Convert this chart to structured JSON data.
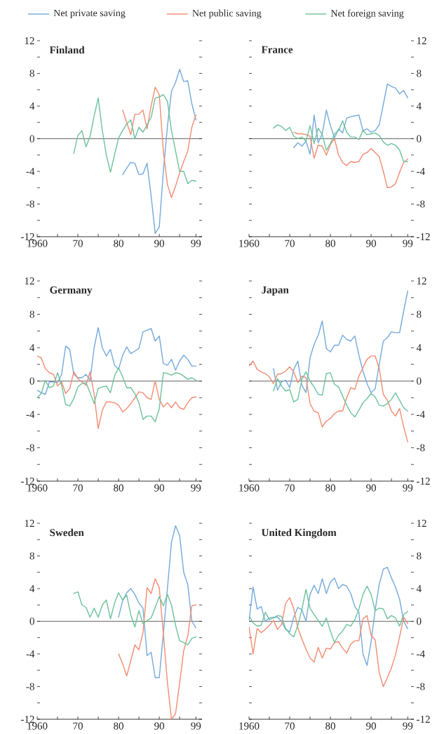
{
  "chart_data": [
    {
      "type": "line",
      "title": "Finland",
      "legend": "top",
      "xlim": [
        1960,
        2000.5
      ],
      "ylim": [
        -12,
        12
      ],
      "xticks": [
        1960,
        {
          "value": 1965,
          "label": null
        },
        {
          "value": 1970,
          "label": "70"
        },
        {
          "value": 1975,
          "label": null
        },
        {
          "value": 1980,
          "label": "80"
        },
        {
          "value": 1985,
          "label": null
        },
        {
          "value": 1990,
          "label": "90"
        },
        {
          "value": 1995,
          "label": null
        },
        {
          "value": 1999,
          "label": "99"
        }
      ],
      "yticks": [
        -12,
        {
          "value": -10,
          "label": null
        },
        -8,
        {
          "value": -6,
          "label": null
        },
        -4,
        {
          "value": -2,
          "label": null
        },
        0,
        {
          "value": 2,
          "label": null
        },
        4,
        {
          "value": 6,
          "label": null
        },
        8,
        {
          "value": 10,
          "label": null
        },
        12
      ],
      "ref_lines": [
        {
          "axis": "y",
          "value": 0,
          "color": "#000000"
        }
      ],
      "series": [
        {
          "name": "Net private saving",
          "color": "#74a9dc",
          "x": [
            1981,
            1982,
            1983,
            1984,
            1985,
            1986,
            1987,
            1988,
            1989,
            1990,
            1991,
            1992,
            1993,
            1994,
            1995,
            1996,
            1997,
            1998,
            1999
          ],
          "values": [
            -4.4,
            -3.6,
            -2.9,
            -3.0,
            -4.4,
            -4.3,
            -3.0,
            -7.0,
            -11.6,
            -10.8,
            -4.0,
            1.5,
            5.8,
            6.9,
            8.5,
            7.0,
            7.1,
            4.3,
            2.3
          ]
        },
        {
          "name": "Net public saving",
          "color": "#f28b72",
          "x": [
            1981,
            1982,
            1983,
            1984,
            1985,
            1986,
            1987,
            1988,
            1989,
            1990,
            1991,
            1992,
            1993,
            1994,
            1995,
            1996,
            1997,
            1998,
            1999
          ],
          "values": [
            3.5,
            2.0,
            0.5,
            3.0,
            3.0,
            3.5,
            1.2,
            4.0,
            6.3,
            5.4,
            -1.5,
            -5.6,
            -7.2,
            -5.8,
            -4.2,
            -2.8,
            -1.5,
            1.4,
            2.9
          ]
        },
        {
          "name": "Net foreign saving",
          "color": "#6cc29a",
          "x": [
            1969,
            1970,
            1971,
            1972,
            1973,
            1974,
            1975,
            1976,
            1977,
            1978,
            1979,
            1980,
            1981,
            1982,
            1983,
            1984,
            1985,
            1986,
            1987,
            1988,
            1989,
            1990,
            1991,
            1992,
            1993,
            1994,
            1995,
            1996,
            1997,
            1998,
            1999
          ],
          "values": [
            -1.8,
            0.4,
            1.0,
            -1.0,
            0.3,
            2.8,
            5.0,
            1.0,
            -2.0,
            -4.1,
            -2.0,
            0.1,
            1.0,
            1.8,
            2.3,
            0.0,
            1.4,
            0.8,
            1.7,
            2.6,
            5.0,
            5.1,
            5.4,
            4.6,
            1.0,
            -1.5,
            -4.0,
            -4.0,
            -5.5,
            -5.1,
            -5.2
          ]
        }
      ]
    },
    {
      "type": "line",
      "title": "France",
      "xlim": [
        1960,
        2000.5
      ],
      "ylim": [
        -12,
        12
      ],
      "xticks": [
        1960,
        {
          "value": 1965,
          "label": null
        },
        {
          "value": 1970,
          "label": "70"
        },
        {
          "value": 1975,
          "label": null
        },
        {
          "value": 1980,
          "label": "80"
        },
        {
          "value": 1985,
          "label": null
        },
        {
          "value": 1990,
          "label": "90"
        },
        {
          "value": 1995,
          "label": null
        },
        {
          "value": 1999,
          "label": "99"
        }
      ],
      "yticks": [
        -12,
        {
          "value": -10,
          "label": null
        },
        -8,
        {
          "value": -6,
          "label": null
        },
        -4,
        {
          "value": -2,
          "label": null
        },
        0,
        {
          "value": 2,
          "label": null
        },
        4,
        {
          "value": 6,
          "label": null
        },
        8,
        {
          "value": 10,
          "label": null
        },
        12
      ],
      "ref_lines": [
        {
          "axis": "y",
          "value": 0,
          "color": "#000000"
        }
      ],
      "series": [
        {
          "color": "#74a9dc",
          "x": [
            1971,
            1972,
            1973,
            1974,
            1975,
            1976,
            1977,
            1978,
            1979,
            1980,
            1981,
            1982,
            1983,
            1984,
            1985,
            1986,
            1987,
            1988,
            1989,
            1990,
            1991,
            1992,
            1993,
            1994,
            1995,
            1996,
            1997,
            1998,
            1999
          ],
          "values": [
            -1.1,
            -0.5,
            -0.9,
            -0.3,
            -1.9,
            2.9,
            -0.5,
            0.6,
            3.5,
            1.6,
            0.1,
            1.2,
            0.7,
            2.5,
            2.7,
            2.8,
            2.9,
            1.0,
            1.2,
            0.8,
            1.0,
            1.7,
            4.2,
            6.7,
            6.4,
            6.2,
            5.5,
            5.9,
            5.0
          ]
        },
        {
          "color": "#f28b72",
          "x": [
            1971,
            1972,
            1973,
            1974,
            1975,
            1976,
            1977,
            1978,
            1979,
            1980,
            1981,
            1982,
            1983,
            1984,
            1985,
            1986,
            1987,
            1988,
            1989,
            1990,
            1991,
            1992,
            1993,
            1994,
            1995,
            1996,
            1997,
            1998,
            1999
          ],
          "values": [
            0.8,
            0.6,
            0.6,
            0.5,
            0.3,
            -2.4,
            -0.8,
            -0.9,
            -2.0,
            -0.7,
            0.0,
            -2.0,
            -2.9,
            -3.3,
            -2.8,
            -2.9,
            -2.8,
            -1.9,
            -1.7,
            -1.2,
            -1.7,
            -2.2,
            -4.0,
            -6.0,
            -5.9,
            -5.5,
            -4.1,
            -2.9,
            -2.5
          ]
        },
        {
          "color": "#6cc29a",
          "x": [
            1966,
            1967,
            1968,
            1969,
            1970,
            1971,
            1972,
            1973,
            1974,
            1975,
            1976,
            1977,
            1978,
            1979,
            1980,
            1981,
            1982,
            1983,
            1984,
            1985,
            1986,
            1987,
            1988,
            1989,
            1990,
            1991,
            1992,
            1993,
            1994,
            1995,
            1996,
            1997,
            1998,
            1999
          ],
          "values": [
            1.3,
            1.7,
            1.5,
            1.0,
            1.4,
            0.3,
            0.0,
            0.2,
            -0.3,
            1.6,
            -0.6,
            1.3,
            0.5,
            -1.4,
            -0.6,
            0.6,
            1.0,
            2.2,
            0.8,
            0.2,
            0.2,
            -0.1,
            1.0,
            0.5,
            0.6,
            0.7,
            0.4,
            -0.4,
            -0.8,
            -0.6,
            -0.8,
            -1.4,
            -2.8,
            -2.8
          ]
        }
      ]
    },
    {
      "type": "line",
      "title": "Germany",
      "xlim": [
        1960,
        2000.5
      ],
      "ylim": [
        -12,
        12
      ],
      "xticks": [
        1960,
        {
          "value": 1965,
          "label": null
        },
        {
          "value": 1970,
          "label": "70"
        },
        {
          "value": 1975,
          "label": null
        },
        {
          "value": 1980,
          "label": "80"
        },
        {
          "value": 1985,
          "label": null
        },
        {
          "value": 1990,
          "label": "90"
        },
        {
          "value": 1995,
          "label": null
        },
        {
          "value": 1999,
          "label": "99"
        }
      ],
      "yticks": [
        -12,
        {
          "value": -10,
          "label": null
        },
        -8,
        {
          "value": -6,
          "label": null
        },
        -4,
        {
          "value": -2,
          "label": null
        },
        0,
        {
          "value": 2,
          "label": null
        },
        4,
        {
          "value": 6,
          "label": null
        },
        8,
        {
          "value": 10,
          "label": null
        },
        12
      ],
      "ref_lines": [
        {
          "axis": "y",
          "value": 0,
          "color": "#000000"
        }
      ],
      "series": [
        {
          "color": "#74a9dc",
          "x": [
            1960,
            1961,
            1962,
            1963,
            1964,
            1965,
            1966,
            1967,
            1968,
            1969,
            1970,
            1971,
            1972,
            1973,
            1974,
            1975,
            1976,
            1977,
            1978,
            1979,
            1980,
            1981,
            1982,
            1983,
            1984,
            1985,
            1986,
            1987,
            1988,
            1989,
            1990,
            1991,
            1992,
            1993,
            1994,
            1995,
            1996,
            1997,
            1998,
            1999
          ],
          "values": [
            -1.1,
            -1.4,
            -1.6,
            -0.1,
            -0.1,
            -0.2,
            0.8,
            4.2,
            3.8,
            0.8,
            0.4,
            0.4,
            0.8,
            0.1,
            4.0,
            6.4,
            4.0,
            3.0,
            3.8,
            1.9,
            1.4,
            3.1,
            4.1,
            3.3,
            3.6,
            3.9,
            5.9,
            6.1,
            6.3,
            4.8,
            5.4,
            2.1,
            1.9,
            2.6,
            1.3,
            2.4,
            3.1,
            2.6,
            1.8,
            1.8
          ]
        },
        {
          "color": "#f28b72",
          "x": [
            1960,
            1961,
            1962,
            1963,
            1964,
            1965,
            1966,
            1967,
            1968,
            1969,
            1970,
            1971,
            1972,
            1973,
            1974,
            1975,
            1976,
            1977,
            1978,
            1979,
            1980,
            1981,
            1982,
            1983,
            1984,
            1985,
            1986,
            1987,
            1988,
            1989,
            1990,
            1991,
            1992,
            1993,
            1994,
            1995,
            1996,
            1997,
            1998,
            1999
          ],
          "values": [
            3.0,
            2.8,
            1.5,
            1.0,
            0.8,
            -0.6,
            -0.1,
            -1.5,
            -0.9,
            1.1,
            0.3,
            -0.1,
            -0.5,
            1.1,
            -1.6,
            -5.7,
            -3.5,
            -2.5,
            -2.5,
            -2.6,
            -2.9,
            -3.7,
            -3.3,
            -2.7,
            -2.0,
            -1.3,
            -1.4,
            -2.0,
            -2.2,
            0.0,
            -2.2,
            -3.1,
            -2.6,
            -3.2,
            -2.5,
            -3.2,
            -3.4,
            -2.6,
            -2.0,
            -1.9
          ]
        },
        {
          "color": "#6cc29a",
          "x": [
            1960,
            1961,
            1962,
            1963,
            1964,
            1965,
            1966,
            1967,
            1968,
            1969,
            1970,
            1971,
            1972,
            1973,
            1974,
            1975,
            1976,
            1977,
            1978,
            1979,
            1980,
            1981,
            1982,
            1983,
            1984,
            1985,
            1986,
            1987,
            1988,
            1989,
            1990,
            1991,
            1992,
            1993,
            1994,
            1995,
            1996,
            1997,
            1998,
            1999
          ],
          "values": [
            -2.0,
            -1.5,
            0.1,
            -0.8,
            -0.6,
            1.0,
            -0.5,
            -2.8,
            -3.0,
            -2.1,
            -0.7,
            -0.3,
            -0.2,
            -1.4,
            -2.7,
            -0.9,
            -0.7,
            -0.6,
            -1.4,
            0.6,
            1.6,
            0.5,
            -0.8,
            -0.8,
            -1.5,
            -2.6,
            -4.6,
            -4.2,
            -4.2,
            -4.9,
            -3.3,
            1.0,
            0.9,
            0.7,
            1.0,
            0.9,
            0.6,
            0.2,
            0.4,
            0.1
          ]
        }
      ]
    },
    {
      "type": "line",
      "title": "Japan",
      "xlim": [
        1960,
        2000.5
      ],
      "ylim": [
        -12,
        12
      ],
      "xticks": [
        1960,
        {
          "value": 1965,
          "label": null
        },
        {
          "value": 1970,
          "label": "70"
        },
        {
          "value": 1975,
          "label": null
        },
        {
          "value": 1980,
          "label": "80"
        },
        {
          "value": 1985,
          "label": null
        },
        {
          "value": 1990,
          "label": "90"
        },
        {
          "value": 1995,
          "label": null
        },
        {
          "value": 1999,
          "label": "99"
        }
      ],
      "yticks": [
        -12,
        {
          "value": -10,
          "label": null
        },
        -8,
        {
          "value": -6,
          "label": null
        },
        -4,
        {
          "value": -2,
          "label": null
        },
        0,
        {
          "value": 2,
          "label": null
        },
        4,
        {
          "value": 6,
          "label": null
        },
        8,
        {
          "value": 10,
          "label": null
        },
        12
      ],
      "ref_lines": [
        {
          "axis": "y",
          "value": 0,
          "color": "#000000"
        }
      ],
      "series": [
        {
          "color": "#74a9dc",
          "x": [
            1966,
            1967,
            1968,
            1969,
            1970,
            1971,
            1972,
            1973,
            1974,
            1975,
            1976,
            1977,
            1978,
            1979,
            1980,
            1981,
            1982,
            1983,
            1984,
            1985,
            1986,
            1987,
            1988,
            1989,
            1990,
            1991,
            1992,
            1993,
            1994,
            1995,
            1996,
            1997,
            1998,
            1999
          ],
          "values": [
            1.5,
            -1.1,
            -0.1,
            0.1,
            -0.8,
            1.4,
            2.4,
            -0.5,
            -1.4,
            2.8,
            4.4,
            5.5,
            7.2,
            3.9,
            3.5,
            4.3,
            4.3,
            5.5,
            5.0,
            4.8,
            5.4,
            3.1,
            1.2,
            -0.3,
            -1.4,
            -0.9,
            2.0,
            4.8,
            5.2,
            5.9,
            5.8,
            5.8,
            8.4,
            10.8
          ]
        },
        {
          "color": "#f28b72",
          "x": [
            1960,
            1961,
            1962,
            1963,
            1964,
            1965,
            1966,
            1967,
            1968,
            1969,
            1970,
            1971,
            1972,
            1973,
            1974,
            1975,
            1976,
            1977,
            1978,
            1979,
            1980,
            1981,
            1982,
            1983,
            1984,
            1985,
            1986,
            1987,
            1988,
            1989,
            1990,
            1991,
            1992,
            1993,
            1994,
            1995,
            1996,
            1997,
            1998,
            1999
          ],
          "values": [
            1.8,
            2.4,
            1.4,
            1.1,
            0.9,
            0.5,
            -0.3,
            0.8,
            0.9,
            1.2,
            1.7,
            1.1,
            -0.2,
            0.6,
            0.4,
            -2.7,
            -3.6,
            -3.8,
            -5.5,
            -4.8,
            -4.5,
            -3.9,
            -3.6,
            -3.6,
            -2.0,
            -0.8,
            -1.0,
            0.6,
            1.6,
            2.6,
            3.0,
            3.0,
            1.5,
            -1.6,
            -2.3,
            -3.6,
            -4.2,
            -3.3,
            -5.5,
            -7.3
          ]
        },
        {
          "color": "#6cc29a",
          "x": [
            1966,
            1967,
            1968,
            1969,
            1970,
            1971,
            1972,
            1973,
            1974,
            1975,
            1976,
            1977,
            1978,
            1979,
            1980,
            1981,
            1982,
            1983,
            1984,
            1985,
            1986,
            1987,
            1988,
            1989,
            1990,
            1991,
            1992,
            1993,
            1994,
            1995,
            1996,
            1997,
            1998,
            1999
          ],
          "values": [
            -1.2,
            0.3,
            -0.6,
            -1.2,
            -1.0,
            -2.5,
            -2.2,
            0.2,
            1.1,
            0.0,
            -0.7,
            -1.6,
            -1.7,
            0.9,
            1.0,
            -0.4,
            -0.7,
            -1.8,
            -2.9,
            -3.8,
            -4.3,
            -3.5,
            -2.6,
            -2.1,
            -1.5,
            -1.9,
            -2.9,
            -3.0,
            -2.7,
            -2.2,
            -1.4,
            -2.3,
            -3.2,
            -3.6
          ]
        }
      ]
    },
    {
      "type": "line",
      "title": "Sweden",
      "xlim": [
        1960,
        2000.5
      ],
      "ylim": [
        -12,
        12
      ],
      "xticks": [
        1960,
        {
          "value": 1965,
          "label": null
        },
        {
          "value": 1970,
          "label": "70"
        },
        {
          "value": 1975,
          "label": null
        },
        {
          "value": 1980,
          "label": "80"
        },
        {
          "value": 1985,
          "label": null
        },
        {
          "value": 1990,
          "label": "90"
        },
        {
          "value": 1995,
          "label": null
        },
        {
          "value": 1999,
          "label": "99"
        }
      ],
      "yticks": [
        -12,
        {
          "value": -10,
          "label": null
        },
        -8,
        {
          "value": -6,
          "label": null
        },
        -4,
        {
          "value": -2,
          "label": null
        },
        0,
        {
          "value": 2,
          "label": null
        },
        4,
        {
          "value": 6,
          "label": null
        },
        8,
        {
          "value": 10,
          "label": null
        },
        12
      ],
      "ref_lines": [
        {
          "axis": "y",
          "value": 0,
          "color": "#000000"
        }
      ],
      "series": [
        {
          "color": "#74a9dc",
          "x": [
            1980,
            1981,
            1982,
            1983,
            1984,
            1985,
            1986,
            1987,
            1988,
            1989,
            1990,
            1991,
            1992,
            1993,
            1994,
            1995,
            1996,
            1997,
            1998,
            1999
          ],
          "values": [
            0.5,
            2.5,
            3.5,
            4.0,
            3.3,
            2.2,
            1.6,
            -4.2,
            -3.8,
            -6.9,
            -6.9,
            -1.5,
            4.0,
            9.7,
            11.7,
            10.5,
            6.0,
            4.5,
            0.0,
            -0.8
          ]
        },
        {
          "color": "#f28b72",
          "x": [
            1980,
            1981,
            1982,
            1983,
            1984,
            1985,
            1986,
            1987,
            1988,
            1989,
            1990,
            1991,
            1992,
            1993,
            1994,
            1995,
            1996,
            1997,
            1998,
            1999
          ],
          "values": [
            -4.0,
            -5.2,
            -6.7,
            -4.8,
            -2.9,
            -3.5,
            -1.4,
            4.1,
            3.4,
            5.2,
            4.1,
            -1.5,
            -7.5,
            -12.0,
            -11.3,
            -7.6,
            -3.6,
            -1.8,
            1.9,
            2.0
          ]
        },
        {
          "color": "#6cc29a",
          "x": [
            1969,
            1970,
            1971,
            1972,
            1973,
            1974,
            1975,
            1976,
            1977,
            1978,
            1979,
            1980,
            1981,
            1982,
            1983,
            1984,
            1985,
            1986,
            1987,
            1988,
            1989,
            1990,
            1991,
            1992,
            1993,
            1994,
            1995,
            1996,
            1997,
            1998,
            1999
          ],
          "values": [
            3.4,
            3.6,
            2.0,
            1.7,
            0.5,
            1.6,
            0.5,
            2.0,
            2.6,
            0.3,
            2.2,
            3.5,
            2.6,
            3.2,
            0.8,
            -0.7,
            1.3,
            -0.3,
            0.1,
            0.4,
            1.7,
            3.0,
            1.9,
            3.3,
            2.0,
            -0.5,
            -2.4,
            -2.6,
            -2.9,
            -2.1,
            -1.9
          ]
        }
      ]
    },
    {
      "type": "line",
      "title": "United Kingdom",
      "xlim": [
        1960,
        2000.5
      ],
      "ylim": [
        -12,
        12
      ],
      "xticks": [
        1960,
        {
          "value": 1965,
          "label": null
        },
        {
          "value": 1970,
          "label": "70"
        },
        {
          "value": 1975,
          "label": null
        },
        {
          "value": 1980,
          "label": "80"
        },
        {
          "value": 1985,
          "label": null
        },
        {
          "value": 1990,
          "label": "90"
        },
        {
          "value": 1995,
          "label": null
        },
        {
          "value": 1999,
          "label": "99"
        }
      ],
      "yticks": [
        -12,
        {
          "value": -10,
          "label": null
        },
        -8,
        {
          "value": -6,
          "label": null
        },
        -4,
        {
          "value": -2,
          "label": null
        },
        0,
        {
          "value": 2,
          "label": null
        },
        4,
        {
          "value": 6,
          "label": null
        },
        8,
        {
          "value": 10,
          "label": null
        },
        12
      ],
      "ref_lines": [
        {
          "axis": "y",
          "value": 0,
          "color": "#000000"
        }
      ],
      "series": [
        {
          "color": "#74a9dc",
          "x": [
            1960,
            1961,
            1962,
            1963,
            1964,
            1965,
            1966,
            1967,
            1968,
            1969,
            1970,
            1971,
            1972,
            1973,
            1974,
            1975,
            1976,
            1977,
            1978,
            1979,
            1980,
            1981,
            1982,
            1983,
            1984,
            1985,
            1986,
            1987,
            1988,
            1989,
            1990,
            1991,
            1992,
            1993,
            1994,
            1995,
            1996,
            1997,
            1998,
            1999
          ],
          "values": [
            0.0,
            4.2,
            1.5,
            1.8,
            0.0,
            0.4,
            0.5,
            0.5,
            0.0,
            -1.0,
            -1.3,
            0.5,
            1.7,
            1.4,
            0.0,
            3.3,
            4.4,
            3.4,
            5.2,
            3.4,
            4.8,
            5.3,
            4.0,
            4.5,
            4.3,
            3.4,
            1.8,
            1.1,
            -4.0,
            -5.4,
            -2.5,
            1.4,
            4.5,
            6.4,
            6.6,
            5.3,
            4.2,
            2.7,
            0.0,
            -0.9
          ]
        },
        {
          "color": "#f28b72",
          "x": [
            1960,
            1961,
            1962,
            1963,
            1964,
            1965,
            1966,
            1967,
            1968,
            1969,
            1970,
            1971,
            1972,
            1973,
            1974,
            1975,
            1976,
            1977,
            1978,
            1979,
            1980,
            1981,
            1982,
            1983,
            1984,
            1985,
            1986,
            1987,
            1988,
            1989,
            1990,
            1991,
            1992,
            1993,
            1994,
            1995,
            1996,
            1997,
            1998,
            1999
          ],
          "values": [
            -0.7,
            -4.0,
            -0.9,
            -1.4,
            -1.0,
            -0.5,
            0.1,
            -1.0,
            -0.4,
            2.2,
            2.9,
            1.5,
            -0.8,
            -2.2,
            -3.4,
            -4.5,
            -5.0,
            -3.2,
            -4.5,
            -3.3,
            -3.4,
            -2.6,
            -2.5,
            -3.3,
            -3.9,
            -2.8,
            -2.4,
            -2.4,
            0.3,
            0.7,
            -1.7,
            -2.3,
            -6.3,
            -8.0,
            -6.9,
            -5.7,
            -4.1,
            -1.9,
            0.5,
            -0.3
          ]
        },
        {
          "color": "#6cc29a",
          "x": [
            1960,
            1961,
            1962,
            1963,
            1964,
            1965,
            1966,
            1967,
            1968,
            1969,
            1970,
            1971,
            1972,
            1973,
            1974,
            1975,
            1976,
            1977,
            1978,
            1979,
            1980,
            1981,
            1982,
            1983,
            1984,
            1985,
            1986,
            1987,
            1988,
            1989,
            1990,
            1991,
            1992,
            1993,
            1994,
            1995,
            1996,
            1997,
            1998,
            1999
          ],
          "values": [
            0.7,
            -0.2,
            -0.6,
            -0.5,
            1.1,
            0.2,
            0.4,
            0.7,
            0.6,
            -0.9,
            -1.5,
            -1.9,
            -0.5,
            1.5,
            3.9,
            1.6,
            0.8,
            0.1,
            -0.6,
            0.4,
            -1.2,
            -2.6,
            -1.7,
            -1.2,
            -0.4,
            -0.6,
            0.2,
            1.5,
            3.3,
            4.3,
            3.3,
            1.3,
            1.6,
            1.5,
            0.3,
            0.7,
            0.4,
            -0.6,
            0.8,
            1.2
          ]
        }
      ]
    }
  ]
}
